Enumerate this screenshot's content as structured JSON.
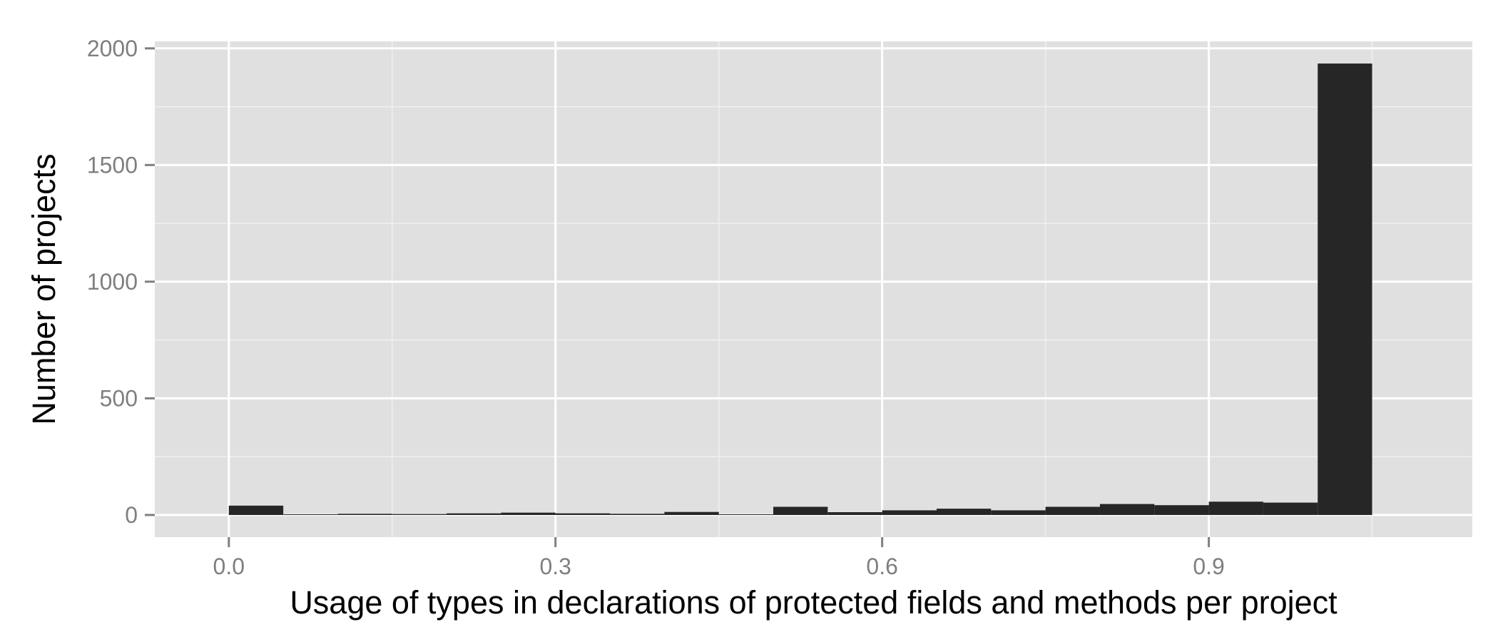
{
  "chart_data": {
    "type": "bar",
    "subtype": "histogram",
    "title": "",
    "xlabel": "Usage of types in declarations of protected fields and methods per project",
    "ylabel": "Number of projects",
    "xlim": [
      -0.068,
      1.142
    ],
    "ylim": [
      -95,
      2030
    ],
    "x_ticks": [
      0.0,
      0.3,
      0.6,
      0.9
    ],
    "x_tick_labels": [
      "0.0",
      "0.3",
      "0.6",
      "0.9"
    ],
    "y_ticks": [
      0,
      500,
      1000,
      1500,
      2000
    ],
    "y_tick_labels": [
      "0",
      "500",
      "1000",
      "1500",
      "2000"
    ],
    "grid": true,
    "bin_width": 0.05,
    "bins": [
      {
        "x0": 0.0,
        "x1": 0.05,
        "value": 40
      },
      {
        "x0": 0.05,
        "x1": 0.1,
        "value": 3
      },
      {
        "x0": 0.1,
        "x1": 0.15,
        "value": 5
      },
      {
        "x0": 0.15,
        "x1": 0.2,
        "value": 4
      },
      {
        "x0": 0.2,
        "x1": 0.25,
        "value": 7
      },
      {
        "x0": 0.25,
        "x1": 0.3,
        "value": 10
      },
      {
        "x0": 0.3,
        "x1": 0.35,
        "value": 7
      },
      {
        "x0": 0.35,
        "x1": 0.4,
        "value": 5
      },
      {
        "x0": 0.4,
        "x1": 0.45,
        "value": 13
      },
      {
        "x0": 0.45,
        "x1": 0.5,
        "value": 3
      },
      {
        "x0": 0.5,
        "x1": 0.55,
        "value": 35
      },
      {
        "x0": 0.55,
        "x1": 0.6,
        "value": 12
      },
      {
        "x0": 0.6,
        "x1": 0.65,
        "value": 20
      },
      {
        "x0": 0.65,
        "x1": 0.7,
        "value": 27
      },
      {
        "x0": 0.7,
        "x1": 0.75,
        "value": 20
      },
      {
        "x0": 0.75,
        "x1": 0.8,
        "value": 35
      },
      {
        "x0": 0.8,
        "x1": 0.85,
        "value": 47
      },
      {
        "x0": 0.85,
        "x1": 0.9,
        "value": 42
      },
      {
        "x0": 0.9,
        "x1": 0.95,
        "value": 57
      },
      {
        "x0": 0.95,
        "x1": 1.0,
        "value": 53
      },
      {
        "x0": 1.0,
        "x1": 1.05,
        "value": 1935
      }
    ],
    "colors": {
      "panel_background": "#e0e0e0",
      "grid_major": "#ffffff",
      "grid_minor": "#f0f0f0",
      "bar_fill": "#262626",
      "tick_text": "#7f7f7f",
      "axis_title": "#000000"
    }
  }
}
